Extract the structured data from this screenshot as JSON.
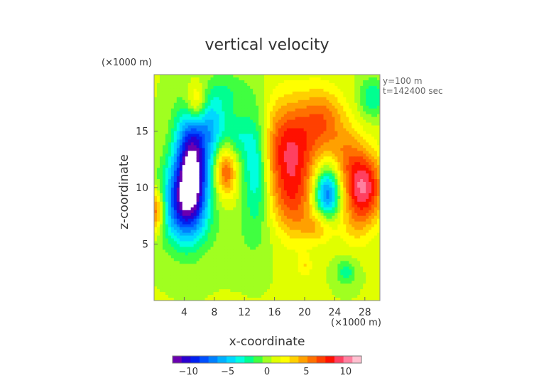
{
  "chart_data": {
    "type": "heatmap",
    "title": "vertical velocity",
    "xlabel": "x-coordinate",
    "ylabel": "z-coordinate",
    "x_unit": "(×1000 m)",
    "y_unit": "(×1000 m)",
    "annotations": [
      "y=100 m",
      "t=142400 sec"
    ],
    "xlim": [
      0,
      30
    ],
    "ylim": [
      0,
      20
    ],
    "x_ticks": [
      4,
      8,
      12,
      16,
      20,
      24,
      28
    ],
    "y_ticks": [
      5,
      10,
      15
    ],
    "colorbar": {
      "range": [
        -12,
        12
      ],
      "ticks": [
        -10,
        -5,
        0,
        5,
        10
      ],
      "colors": [
        "#6a00b0",
        "#2a00d0",
        "#0020f0",
        "#0050ff",
        "#0080ff",
        "#00b0ff",
        "#00d8ff",
        "#00ffe0",
        "#00ff90",
        "#40ff40",
        "#a0ff20",
        "#e0ff00",
        "#ffff00",
        "#ffd000",
        "#ffa000",
        "#ff7000",
        "#ff4000",
        "#ff1000",
        "#ff4060",
        "#ff80a0",
        "#ffc0d0"
      ]
    },
    "background_value": 0.6,
    "features": [
      {
        "x": 5.0,
        "z": 12.0,
        "value": -12.5,
        "sx": 1.6,
        "sz": 3.4
      },
      {
        "x": 3.6,
        "z": 8.4,
        "value": -7.5,
        "sx": 2.2,
        "sz": 2.4
      },
      {
        "x": 5.6,
        "z": 17.5,
        "value": 5.0,
        "sx": 1.0,
        "sz": 1.3
      },
      {
        "x": 0.0,
        "z": 8.0,
        "value": 7.0,
        "sx": 1.0,
        "sz": 1.4
      },
      {
        "x": 9.5,
        "z": 11.5,
        "value": 6.0,
        "sx": 1.0,
        "sz": 1.6
      },
      {
        "x": 7.8,
        "z": 15.5,
        "value": -4.5,
        "sx": 1.4,
        "sz": 2.0
      },
      {
        "x": 13.5,
        "z": 12.0,
        "value": -5.5,
        "sx": 1.2,
        "sz": 3.5
      },
      {
        "x": 11.0,
        "z": 14.5,
        "value": -3.0,
        "sx": 1.2,
        "sz": 1.5
      },
      {
        "x": 18.0,
        "z": 13.5,
        "value": 7.5,
        "sx": 2.6,
        "sz": 3.0
      },
      {
        "x": 18.5,
        "z": 8.5,
        "value": 4.5,
        "sx": 2.0,
        "sz": 2.5
      },
      {
        "x": 22.5,
        "z": 16.0,
        "value": 4.5,
        "sx": 2.0,
        "sz": 2.0
      },
      {
        "x": 23.0,
        "z": 9.5,
        "value": -8.5,
        "sx": 1.2,
        "sz": 1.6
      },
      {
        "x": 27.8,
        "z": 10.0,
        "value": 9.0,
        "sx": 1.8,
        "sz": 2.2
      },
      {
        "x": 25.5,
        "z": 13.0,
        "value": 3.0,
        "sx": 1.6,
        "sz": 2.0
      },
      {
        "x": 29.0,
        "z": 18.0,
        "value": -3.5,
        "sx": 1.2,
        "sz": 1.2
      },
      {
        "x": 26.5,
        "z": 6.5,
        "value": 1.5,
        "sx": 1.5,
        "sz": 1.5
      },
      {
        "x": 25.5,
        "z": 2.5,
        "value": -3.0,
        "sx": 0.9,
        "sz": 0.8
      },
      {
        "x": 20.0,
        "z": 3.0,
        "value": 2.0,
        "sx": 0.7,
        "sz": 0.7
      },
      {
        "x": 10.0,
        "z": 18.5,
        "value": -2.0,
        "sx": 2.0,
        "sz": 1.3
      },
      {
        "x": 12.0,
        "z": 5.5,
        "value": -0.8,
        "sx": 4.0,
        "sz": 1.8
      },
      {
        "x": 22.0,
        "z": 6.5,
        "value": 3.0,
        "sx": 1.5,
        "sz": 1.0
      }
    ]
  }
}
